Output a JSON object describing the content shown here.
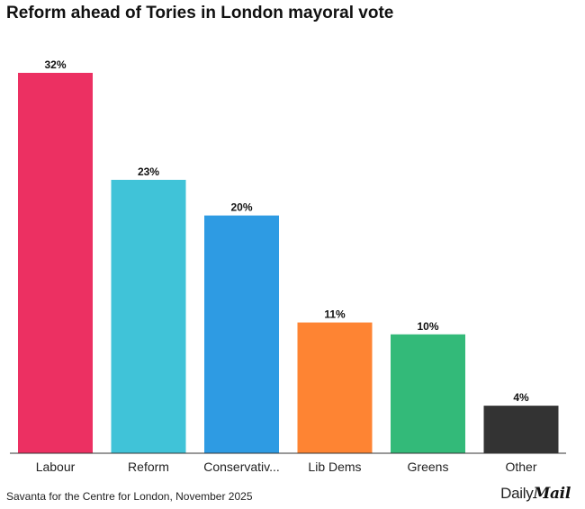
{
  "chart_data": {
    "type": "bar",
    "title": "Reform ahead of Tories in London mayoral vote",
    "categories": [
      "Labour",
      "Reform",
      "Conservativ...",
      "Lib Dems",
      "Greens",
      "Other"
    ],
    "values": [
      32,
      23,
      20,
      11,
      10,
      4
    ],
    "value_labels": [
      "32%",
      "23%",
      "20%",
      "11%",
      "10%",
      "4%"
    ],
    "colors": [
      "#EC3062",
      "#40C3D8",
      "#2E9BE3",
      "#FE8433",
      "#33BA79",
      "#333333"
    ],
    "unit": "%",
    "xlabel": "",
    "ylabel": "",
    "ylim": [
      0,
      32
    ],
    "grid": false,
    "legend": "none"
  },
  "footer": {
    "source": "Savanta for the Centre for London, November 2025",
    "logo_part1": "Daily",
    "logo_part2": "Mail"
  }
}
